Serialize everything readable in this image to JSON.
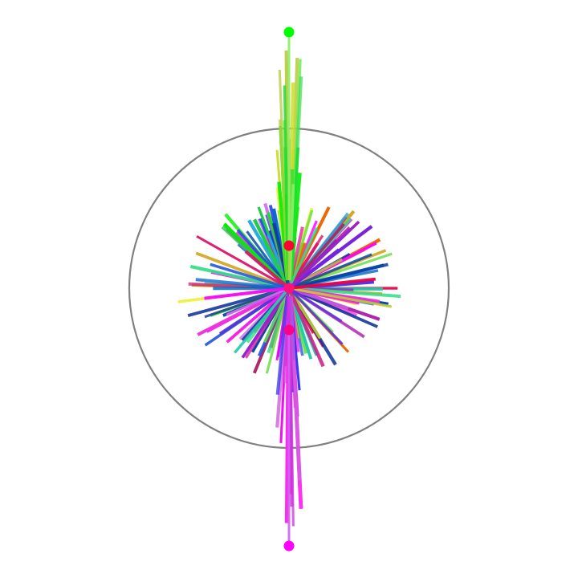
{
  "figure": {
    "background": "#ffffff",
    "circle_color": "#808080",
    "palette": [
      "#00ee00",
      "#66dd44",
      "#eeee22",
      "#bbcc33",
      "#22cc44",
      "#33dd88",
      "#22ccaa",
      "#ee0044",
      "#dd1166",
      "#cc2288",
      "#aa11aa",
      "#9922cc",
      "#7722dd",
      "#5533dd",
      "#3344ee",
      "#2255dd",
      "#0044aa",
      "#113399",
      "#0066cc",
      "#22aadd",
      "#ff00ff",
      "#ee33dd",
      "#cc66ee",
      "#dd2299",
      "#ee6600",
      "#cc9900",
      "#aa2266"
    ],
    "markers": [
      {
        "name": "top-marker",
        "color": "#00ff00"
      },
      {
        "name": "upper-center-marker",
        "color": "#ff0033"
      },
      {
        "name": "center-marker",
        "color": "#ff1177"
      },
      {
        "name": "lower-center-marker",
        "color": "#ff0088"
      },
      {
        "name": "bottom-marker",
        "color": "#ff00ff"
      }
    ]
  }
}
